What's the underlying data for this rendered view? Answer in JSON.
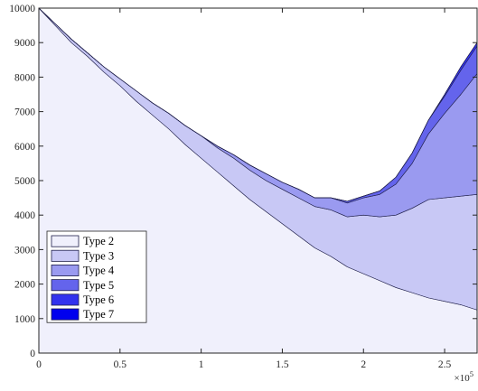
{
  "chart_data": {
    "type": "area",
    "stacked": true,
    "title": "",
    "xlabel": "",
    "ylabel": "",
    "xlim": [
      0,
      270000
    ],
    "ylim": [
      0,
      10000
    ],
    "x_ticks": [
      0,
      50000,
      100000,
      150000,
      200000,
      250000
    ],
    "x_tick_labels": [
      "0",
      "0.5",
      "1",
      "1.5",
      "2",
      "2.5"
    ],
    "x_exponent_label": "×10",
    "x_exponent_power": "5",
    "y_ticks": [
      0,
      1000,
      2000,
      3000,
      4000,
      5000,
      6000,
      7000,
      8000,
      9000,
      10000
    ],
    "y_tick_labels": [
      "0",
      "1000",
      "2000",
      "3000",
      "4000",
      "5000",
      "6000",
      "7000",
      "8000",
      "9000",
      "10000"
    ],
    "grid": false,
    "legend_position": "bottom-left",
    "x": [
      0,
      10000,
      20000,
      30000,
      40000,
      50000,
      60000,
      70000,
      80000,
      90000,
      100000,
      110000,
      120000,
      130000,
      140000,
      150000,
      160000,
      170000,
      180000,
      190000,
      200000,
      210000,
      220000,
      230000,
      240000,
      250000,
      260000,
      270000
    ],
    "series": [
      {
        "name": "Type 2",
        "color": "#f0f0fc",
        "values": [
          10000,
          9500,
          9000,
          8600,
          8150,
          7750,
          7300,
          6900,
          6500,
          6050,
          5650,
          5250,
          4850,
          4450,
          4100,
          3750,
          3400,
          3050,
          2800,
          2500,
          2300,
          2100,
          1900,
          1750,
          1600,
          1500,
          1400,
          1250
        ]
      },
      {
        "name": "Type 3",
        "color": "#c8c8f5",
        "values": [
          0,
          50,
          100,
          100,
          150,
          200,
          300,
          350,
          450,
          550,
          650,
          700,
          800,
          850,
          900,
          1000,
          1100,
          1200,
          1350,
          1450,
          1700,
          1850,
          2100,
          2450,
          2850,
          3000,
          3150,
          3350
        ]
      },
      {
        "name": "Type 4",
        "color": "#9a9af0",
        "values": [
          0,
          0,
          0,
          0,
          0,
          0,
          0,
          0,
          0,
          0,
          0,
          50,
          100,
          150,
          200,
          200,
          250,
          250,
          350,
          400,
          500,
          650,
          900,
          1300,
          1900,
          2450,
          2950,
          3500
        ]
      },
      {
        "name": "Type 5",
        "color": "#6464ec",
        "values": [
          0,
          0,
          0,
          0,
          0,
          0,
          0,
          0,
          0,
          0,
          0,
          0,
          0,
          0,
          0,
          0,
          0,
          0,
          0,
          50,
          50,
          100,
          200,
          300,
          400,
          500,
          700,
          800
        ]
      },
      {
        "name": "Type 6",
        "color": "#3232ee",
        "values": [
          0,
          0,
          0,
          0,
          0,
          0,
          0,
          0,
          0,
          0,
          0,
          0,
          0,
          0,
          0,
          0,
          0,
          0,
          0,
          0,
          0,
          0,
          0,
          0,
          0,
          50,
          100,
          100
        ]
      },
      {
        "name": "Type 7",
        "color": "#0000ee",
        "values": [
          0,
          0,
          0,
          0,
          0,
          0,
          0,
          0,
          0,
          0,
          0,
          0,
          0,
          0,
          0,
          0,
          0,
          0,
          0,
          0,
          0,
          0,
          0,
          0,
          0,
          0,
          0,
          0
        ]
      }
    ]
  }
}
